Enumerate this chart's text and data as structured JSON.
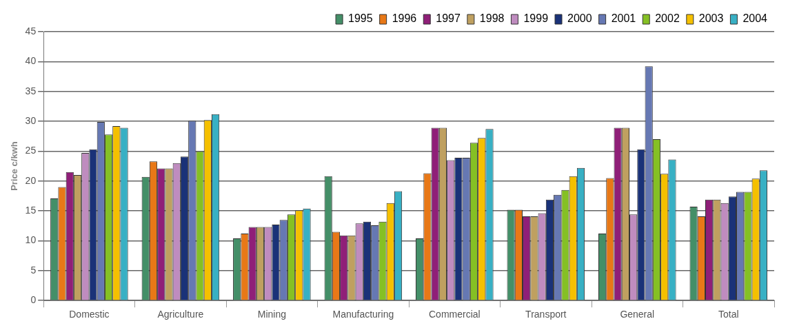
{
  "chart_data": {
    "type": "bar",
    "ylabel": "Price c/kwh",
    "categories": [
      "Domestic",
      "Agriculture",
      "Mining",
      "Manufacturing",
      "Commercial",
      "Transport",
      "General",
      "Total"
    ],
    "series": [
      {
        "name": "1995",
        "color": "#448f68",
        "values": [
          17.1,
          20.7,
          10.4,
          20.8,
          10.4,
          15.2,
          11.2,
          15.7
        ]
      },
      {
        "name": "1996",
        "color": "#e87817",
        "values": [
          19,
          23.3,
          11.2,
          11.5,
          21.3,
          15.2,
          20.5,
          14.1
        ]
      },
      {
        "name": "1997",
        "color": "#8f1f78",
        "values": [
          21.5,
          22.1,
          12.3,
          10.9,
          28.9,
          14.1,
          28.9,
          16.9
        ]
      },
      {
        "name": "1998",
        "color": "#bfa060",
        "values": [
          21,
          22.1,
          12.3,
          10.9,
          28.9,
          14.1,
          28.9,
          16.9
        ]
      },
      {
        "name": "1999",
        "color": "#bf8cbf",
        "values": [
          24.7,
          23,
          12.3,
          12.9,
          23.5,
          14.6,
          14.4,
          16.3
        ]
      },
      {
        "name": "2000",
        "color": "#1a3278",
        "values": [
          25.3,
          24.1,
          12.7,
          13.2,
          23.9,
          16.9,
          25.3,
          17.4
        ]
      },
      {
        "name": "2001",
        "color": "#6678b3",
        "values": [
          29.9,
          30.1,
          13.5,
          12.6,
          23.9,
          17.7,
          39.2,
          18.2
        ]
      },
      {
        "name": "2002",
        "color": "#85c024",
        "values": [
          27.8,
          25,
          14.4,
          13.2,
          26.4,
          18.5,
          27,
          18.2
        ]
      },
      {
        "name": "2003",
        "color": "#f5c000",
        "values": [
          29.2,
          30.2,
          15.1,
          16.3,
          27.2,
          20.8,
          21.2,
          20.4
        ]
      },
      {
        "name": "2004",
        "color": "#38b0c4",
        "values": [
          28.9,
          31.2,
          15.4,
          18.3,
          28.7,
          22.2,
          23.6,
          21.8
        ]
      }
    ],
    "ylim": [
      0,
      45
    ],
    "yticks": [
      0,
      5,
      10,
      15,
      20,
      25,
      30,
      35,
      40,
      45
    ],
    "grid": "y",
    "legend": "top right"
  }
}
